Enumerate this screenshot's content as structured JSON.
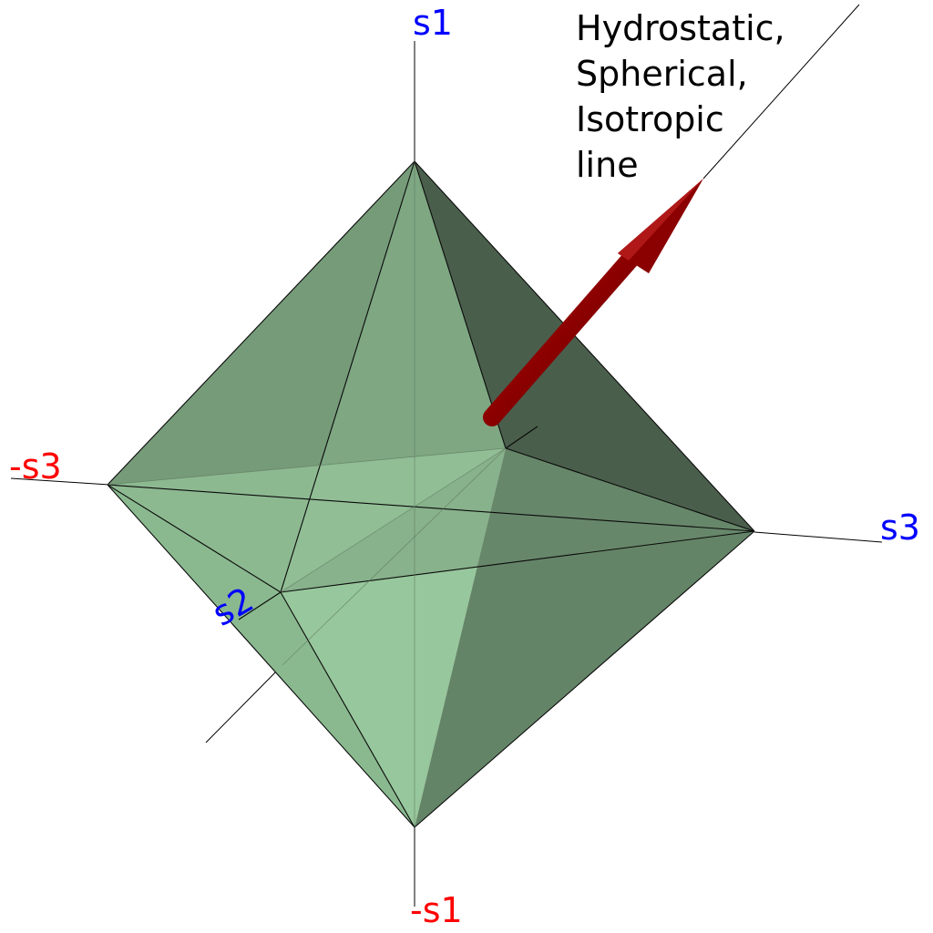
{
  "axes": {
    "s1": "s1",
    "neg_s1": "-s1",
    "s2": "s2",
    "s3": "s3",
    "neg_s3": "-s3"
  },
  "annotation": {
    "line1": "Hydrostatic,",
    "line2": "Spherical,",
    "line3": "Isotropic",
    "line4": "line"
  },
  "colors": {
    "positive_axis_label": "#0000ff",
    "negative_axis_label": "#ff0000",
    "arrow": "#8b0000",
    "octahedron_base": "#8fbf8f"
  }
}
